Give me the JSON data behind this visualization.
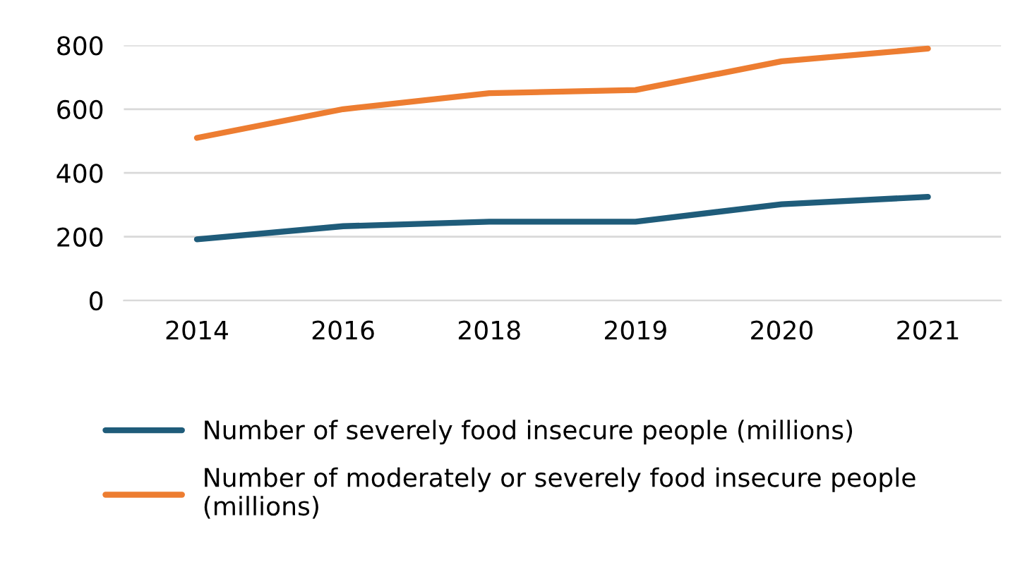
{
  "chart_data": {
    "type": "line",
    "categories": [
      "2014",
      "2016",
      "2018",
      "2019",
      "2020",
      "2021"
    ],
    "series": [
      {
        "name": "Number of severely food insecure people (millions)",
        "color": "#1f5c7a",
        "values": [
          192,
          233,
          247,
          247,
          302,
          325
        ]
      },
      {
        "name": "Number of moderately or severely food insecure people (millions)",
        "color": "#ed7d31",
        "values": [
          510,
          600,
          650,
          660,
          750,
          790
        ]
      }
    ],
    "ylim": [
      0,
      800
    ],
    "yticks": [
      0,
      200,
      400,
      600,
      800
    ],
    "grid": "y",
    "legend": "bottom",
    "marker": "none",
    "line_style": "solid"
  }
}
